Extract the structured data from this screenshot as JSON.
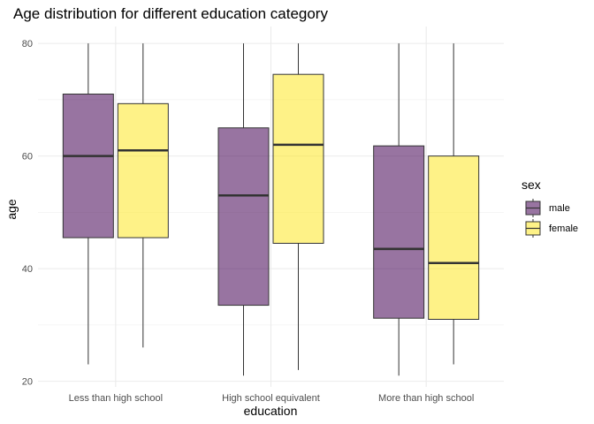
{
  "chart_data": {
    "type": "boxplot",
    "title": "Age distribution for different education category",
    "xlabel": "education",
    "ylabel": "age",
    "categories": [
      "Less than high school",
      "High school equivalent",
      "More than high school"
    ],
    "ylim": [
      19,
      83
    ],
    "yticks": [
      20,
      40,
      60,
      80
    ],
    "grid": true,
    "legend": {
      "title": "sex",
      "position": "right"
    },
    "series": [
      {
        "name": "male",
        "color": "#440154",
        "fill_opacity": 0.55,
        "boxes": [
          {
            "min": 23,
            "q1": 45.5,
            "median": 60,
            "q3": 71,
            "max": 80
          },
          {
            "min": 21,
            "q1": 33.5,
            "median": 53,
            "q3": 65,
            "max": 80
          },
          {
            "min": 21,
            "q1": 31.2,
            "median": 43.5,
            "q3": 61.8,
            "max": 80
          }
        ]
      },
      {
        "name": "female",
        "color": "#FDE725",
        "fill_opacity": 0.55,
        "boxes": [
          {
            "min": 26,
            "q1": 45.5,
            "median": 61,
            "q3": 69.3,
            "max": 80
          },
          {
            "min": 22,
            "q1": 44.5,
            "median": 62,
            "q3": 74.5,
            "max": 80
          },
          {
            "min": 23,
            "q1": 31,
            "median": 41,
            "q3": 60,
            "max": 80
          }
        ]
      }
    ]
  }
}
